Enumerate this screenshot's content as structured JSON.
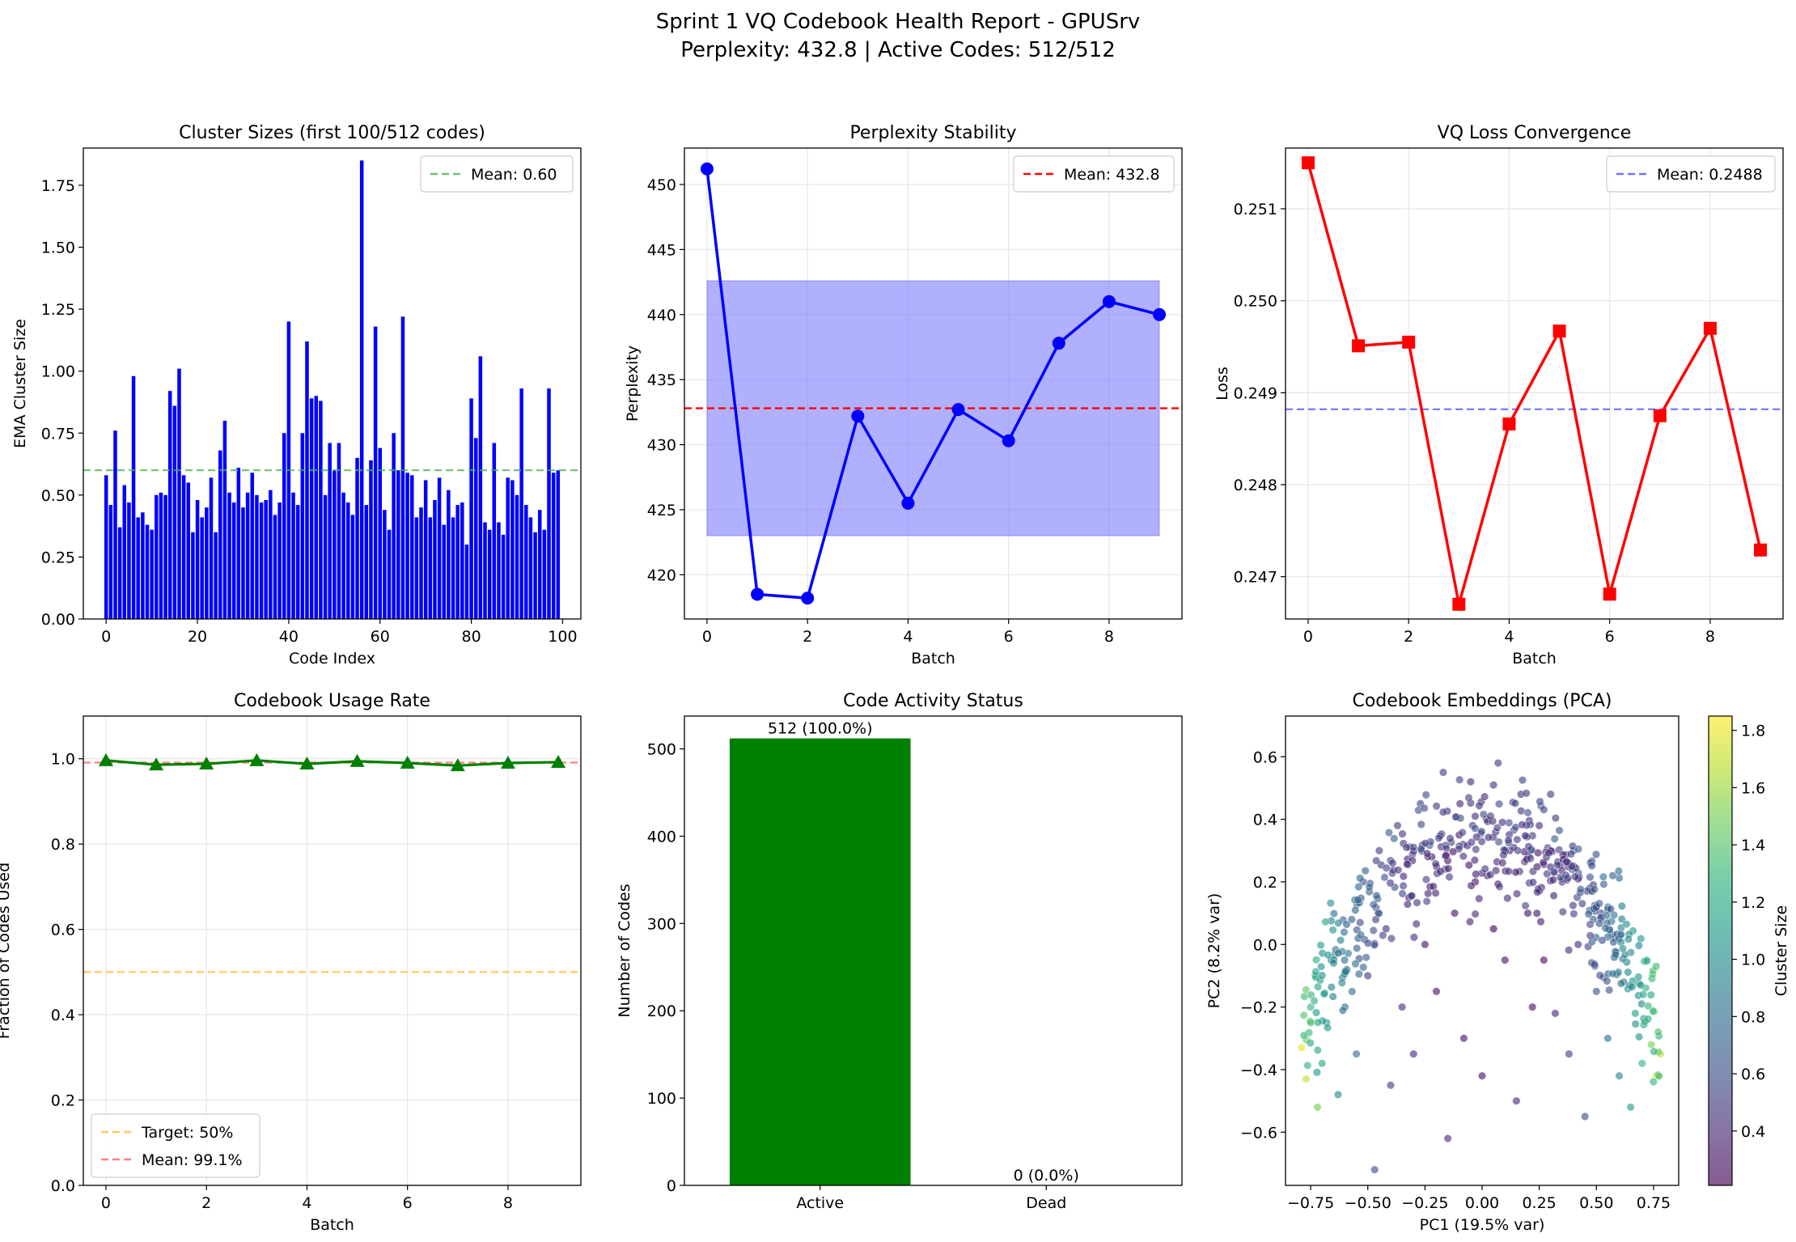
{
  "figure": {
    "title_line1": "Sprint 1 VQ Codebook Health Report - GPUSrv",
    "title_line2": "Perplexity: 432.8 | Active Codes: 512/512",
    "colors": {
      "blue": "#0000ff",
      "red": "#ff0000",
      "green": "#008000",
      "mean_green": "#4caf50",
      "orange": "#ffa500",
      "fill_blue": "#7b7bff"
    }
  },
  "chart_data": [
    {
      "id": "cluster_sizes",
      "type": "bar",
      "title": "Cluster Sizes (first 100/512 codes)",
      "xlabel": "Code Index",
      "ylabel": "EMA Cluster Size",
      "xlim": [
        -5,
        104
      ],
      "ylim": [
        0,
        1.9
      ],
      "xticks": [
        0,
        20,
        40,
        60,
        80,
        100
      ],
      "xtick_labels": [
        "0",
        "20",
        "40",
        "60",
        "80",
        "100"
      ],
      "yticks": [
        0,
        0.25,
        0.5,
        0.75,
        1.0,
        1.25,
        1.5,
        1.75
      ],
      "ytick_labels": [
        "0.00",
        "0.25",
        "0.50",
        "0.75",
        "1.00",
        "1.25",
        "1.50",
        "1.75"
      ],
      "x": [
        0,
        1,
        2,
        3,
        4,
        5,
        6,
        7,
        8,
        9,
        10,
        11,
        12,
        13,
        14,
        15,
        16,
        17,
        18,
        19,
        20,
        21,
        22,
        23,
        24,
        25,
        26,
        27,
        28,
        29,
        30,
        31,
        32,
        33,
        34,
        35,
        36,
        37,
        38,
        39,
        40,
        41,
        42,
        43,
        44,
        45,
        46,
        47,
        48,
        49,
        50,
        51,
        52,
        53,
        54,
        55,
        56,
        57,
        58,
        59,
        60,
        61,
        62,
        63,
        64,
        65,
        66,
        67,
        68,
        69,
        70,
        71,
        72,
        73,
        74,
        75,
        76,
        77,
        78,
        79,
        80,
        81,
        82,
        83,
        84,
        85,
        86,
        87,
        88,
        89,
        90,
        91,
        92,
        93,
        94,
        95,
        96,
        97,
        98,
        99
      ],
      "values": [
        0.58,
        0.46,
        0.76,
        0.37,
        0.54,
        0.47,
        0.98,
        0.41,
        0.43,
        0.38,
        0.36,
        0.5,
        0.51,
        0.5,
        0.92,
        0.86,
        1.01,
        0.58,
        0.55,
        0.35,
        0.48,
        0.41,
        0.45,
        0.57,
        0.35,
        0.68,
        0.8,
        0.51,
        0.47,
        0.61,
        0.45,
        0.51,
        0.59,
        0.5,
        0.47,
        0.48,
        0.52,
        0.42,
        0.47,
        0.75,
        1.2,
        0.51,
        0.46,
        0.75,
        1.12,
        0.89,
        0.9,
        0.88,
        0.5,
        0.71,
        0.6,
        0.71,
        0.51,
        0.47,
        0.42,
        0.65,
        1.85,
        0.46,
        0.64,
        1.18,
        0.69,
        0.44,
        0.36,
        0.75,
        0.6,
        1.22,
        0.59,
        0.58,
        0.41,
        0.45,
        0.56,
        0.41,
        0.48,
        0.57,
        0.38,
        0.52,
        0.41,
        0.46,
        0.47,
        0.3,
        0.89,
        0.73,
        1.06,
        0.39,
        0.36,
        0.71,
        0.39,
        0.34,
        0.57,
        0.56,
        0.5,
        0.93,
        0.46,
        0.41,
        0.35,
        0.44,
        0.36,
        0.93,
        0.59,
        0.6
      ],
      "mean": 0.6,
      "legend": "Mean: 0.60",
      "legend_loc": "upper right"
    },
    {
      "id": "perplexity",
      "type": "line",
      "title": "Perplexity Stability",
      "xlabel": "Batch",
      "ylabel": "Perplexity",
      "xlim": [
        -0.45,
        9.45
      ],
      "ylim": [
        416.6,
        452.8
      ],
      "xticks": [
        0,
        2,
        4,
        6,
        8
      ],
      "xtick_labels": [
        "0",
        "2",
        "4",
        "6",
        "8"
      ],
      "yticks": [
        420,
        425,
        430,
        435,
        440,
        445,
        450
      ],
      "ytick_labels": [
        "420",
        "425",
        "430",
        "435",
        "440",
        "445",
        "450"
      ],
      "x": [
        0,
        1,
        2,
        3,
        4,
        5,
        6,
        7,
        8,
        9
      ],
      "y": [
        451.2,
        418.5,
        418.2,
        432.2,
        425.5,
        432.7,
        430.3,
        437.8,
        441.0,
        440.0
      ],
      "mean": 432.8,
      "band": [
        423.0,
        442.6
      ],
      "legend": "Mean: 432.8",
      "legend_loc": "upper right"
    },
    {
      "id": "vq_loss",
      "type": "line",
      "title": "VQ Loss Convergence",
      "xlabel": "Batch",
      "ylabel": "Loss",
      "xlim": [
        -0.45,
        9.45
      ],
      "ylim": [
        0.24654,
        0.25166
      ],
      "xticks": [
        0,
        2,
        4,
        6,
        8
      ],
      "xtick_labels": [
        "0",
        "2",
        "4",
        "6",
        "8"
      ],
      "yticks": [
        0.247,
        0.248,
        0.249,
        0.25,
        0.251
      ],
      "ytick_labels": [
        "0.247",
        "0.248",
        "0.249",
        "0.250",
        "0.251"
      ],
      "x": [
        0,
        1,
        2,
        3,
        4,
        5,
        6,
        7,
        8,
        9
      ],
      "y": [
        0.2515,
        0.24951,
        0.24955,
        0.2467,
        0.24866,
        0.24967,
        0.24681,
        0.24875,
        0.2497,
        0.24729
      ],
      "mean": 0.24882,
      "legend": "Mean: 0.2488",
      "legend_loc": "upper right"
    },
    {
      "id": "usage_rate",
      "type": "line",
      "title": "Codebook Usage Rate",
      "xlabel": "Batch",
      "ylabel": "Fraction of Codes Used",
      "xlim": [
        -0.45,
        9.45
      ],
      "ylim": [
        0,
        1.1
      ],
      "xticks": [
        0,
        2,
        4,
        6,
        8
      ],
      "xtick_labels": [
        "0",
        "2",
        "4",
        "6",
        "8"
      ],
      "yticks": [
        0,
        0.2,
        0.4,
        0.6,
        0.8,
        1.0
      ],
      "ytick_labels": [
        "0.0",
        "0.2",
        "0.4",
        "0.6",
        "0.8",
        "1.0"
      ],
      "x": [
        0,
        1,
        2,
        3,
        4,
        5,
        6,
        7,
        8,
        9
      ],
      "y": [
        0.996,
        0.986,
        0.988,
        0.996,
        0.988,
        0.994,
        0.99,
        0.984,
        0.99,
        0.992
      ],
      "target": 0.5,
      "mean": 0.991,
      "legend": [
        "Target: 50%",
        "Mean: 99.1%"
      ],
      "legend_loc": "lower left"
    },
    {
      "id": "activity",
      "type": "bar",
      "title": "Code Activity Status",
      "xlabel": "",
      "ylabel": "Number of Codes",
      "categories": [
        "Active",
        "Dead"
      ],
      "values": [
        512,
        0
      ],
      "labels": [
        "512 (100.0%)",
        "0 (0.0%)"
      ],
      "ylim": [
        0,
        537.6
      ],
      "yticks": [
        0,
        100,
        200,
        300,
        400,
        500
      ],
      "ytick_labels": [
        "0",
        "100",
        "200",
        "300",
        "400",
        "500"
      ]
    },
    {
      "id": "pca",
      "type": "scatter",
      "title": "Codebook Embeddings (PCA)",
      "xlabel": "PC1 (19.5% var)",
      "ylabel": "PC2 (8.2% var)",
      "xlim": [
        -0.86,
        0.86
      ],
      "ylim": [
        -0.77,
        0.73
      ],
      "xticks": [
        -0.75,
        -0.5,
        -0.25,
        0,
        0.25,
        0.5,
        0.75
      ],
      "xtick_labels": [
        "−0.75",
        "−0.50",
        "−0.25",
        "0.00",
        "0.25",
        "0.50",
        "0.75"
      ],
      "yticks": [
        -0.6,
        -0.4,
        -0.2,
        0,
        0.2,
        0.4,
        0.6
      ],
      "ytick_labels": [
        "−0.6",
        "−0.4",
        "−0.2",
        "0.0",
        "0.2",
        "0.4",
        "0.6"
      ],
      "n_points": 512,
      "colorbar_label": "Cluster Size",
      "colorbar_range": [
        0.21,
        1.85
      ],
      "colorbar_ticks": [
        0.4,
        0.6,
        0.8,
        1.0,
        1.2,
        1.4,
        1.6,
        1.8
      ],
      "colorbar_tick_labels": [
        "0.4",
        "0.6",
        "0.8",
        "1.0",
        "1.2",
        "1.4",
        "1.6",
        "1.8"
      ],
      "colormap": "viridis",
      "points": [
        [
          -0.79,
          -0.33,
          1.8
        ],
        [
          -0.77,
          -0.43,
          1.7
        ],
        [
          -0.75,
          -0.2,
          1.3
        ],
        [
          -0.73,
          -0.1,
          1.2
        ],
        [
          -0.72,
          -0.52,
          1.5
        ],
        [
          -0.7,
          -0.38,
          1.2
        ],
        [
          -0.68,
          -0.25,
          1.1
        ],
        [
          -0.66,
          -0.05,
          0.9
        ],
        [
          -0.63,
          -0.48,
          1.0
        ],
        [
          -0.6,
          -0.2,
          0.8
        ],
        [
          -0.57,
          0.08,
          0.7
        ],
        [
          -0.55,
          -0.35,
          0.8
        ],
        [
          -0.52,
          0.2,
          0.6
        ],
        [
          -0.5,
          -0.1,
          0.5
        ],
        [
          -0.47,
          -0.72,
          0.6
        ],
        [
          -0.45,
          0.3,
          0.5
        ],
        [
          -0.42,
          0.05,
          0.4
        ],
        [
          -0.4,
          -0.45,
          0.5
        ],
        [
          -0.37,
          0.38,
          0.5
        ],
        [
          -0.35,
          -0.2,
          0.4
        ],
        [
          -0.32,
          0.15,
          0.3
        ],
        [
          -0.3,
          -0.35,
          0.4
        ],
        [
          -0.27,
          0.45,
          0.5
        ],
        [
          -0.25,
          0.0,
          0.3
        ],
        [
          -0.22,
          0.28,
          0.3
        ],
        [
          -0.2,
          -0.15,
          0.3
        ],
        [
          -0.17,
          0.55,
          0.5
        ],
        [
          -0.15,
          -0.62,
          0.4
        ],
        [
          -0.12,
          0.1,
          0.3
        ],
        [
          -0.1,
          0.35,
          0.3
        ],
        [
          -0.08,
          -0.3,
          0.3
        ],
        [
          -0.05,
          0.52,
          0.4
        ],
        [
          -0.03,
          0.2,
          0.3
        ],
        [
          0.0,
          -0.42,
          0.3
        ],
        [
          0.02,
          0.4,
          0.3
        ],
        [
          0.05,
          0.05,
          0.2
        ],
        [
          0.07,
          0.58,
          0.5
        ],
        [
          0.1,
          -0.05,
          0.3
        ],
        [
          0.12,
          0.3,
          0.3
        ],
        [
          0.15,
          -0.5,
          0.4
        ],
        [
          0.17,
          0.48,
          0.4
        ],
        [
          0.2,
          0.1,
          0.3
        ],
        [
          0.22,
          -0.2,
          0.3
        ],
        [
          0.25,
          0.38,
          0.4
        ],
        [
          0.27,
          -0.05,
          0.3
        ],
        [
          0.3,
          0.48,
          0.5
        ],
        [
          0.32,
          -0.22,
          0.4
        ],
        [
          0.35,
          0.2,
          0.4
        ],
        [
          0.38,
          -0.35,
          0.5
        ],
        [
          0.4,
          0.3,
          0.5
        ],
        [
          0.42,
          0.0,
          0.4
        ],
        [
          0.45,
          -0.55,
          0.6
        ],
        [
          0.47,
          0.18,
          0.5
        ],
        [
          0.5,
          -0.15,
          0.6
        ],
        [
          0.52,
          0.1,
          0.6
        ],
        [
          0.55,
          -0.3,
          0.8
        ],
        [
          0.58,
          0.02,
          0.8
        ],
        [
          0.6,
          -0.42,
          1.0
        ],
        [
          0.62,
          -0.12,
          0.9
        ],
        [
          0.65,
          -0.52,
          1.1
        ],
        [
          0.67,
          -0.22,
          1.1
        ],
        [
          0.7,
          -0.38,
          1.3
        ],
        [
          0.72,
          -0.05,
          1.0
        ],
        [
          0.74,
          -0.32,
          1.5
        ],
        [
          0.76,
          -0.42,
          1.8
        ],
        [
          0.78,
          -0.35,
          1.7
        ]
      ]
    }
  ]
}
